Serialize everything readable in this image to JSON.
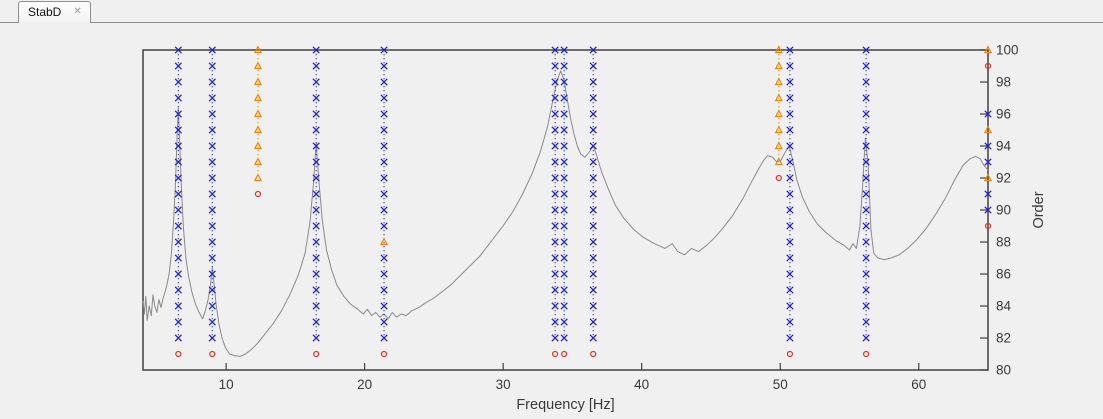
{
  "tab_bar": {
    "tabs": [
      {
        "label": "StabD",
        "close_glyph": "✕",
        "active": true
      }
    ]
  },
  "chart_data": {
    "type": "line",
    "subtype": "stabilization-diagram",
    "xlabel": "Frequency [Hz]",
    "ylabel": "Order",
    "xlim": [
      4,
      65
    ],
    "ylim": [
      80,
      100
    ],
    "x_ticks": [
      10,
      20,
      30,
      40,
      50,
      60
    ],
    "y_ticks": [
      80,
      82,
      84,
      86,
      88,
      90,
      92,
      94,
      96,
      98,
      100
    ],
    "grid": false,
    "legend": "none",
    "colors": {
      "stable_pole": "#2222cc",
      "frequency_pole": "#e8860d",
      "new_pole": "#e0332a",
      "curve": "#8a8a8a",
      "axis": "#404040",
      "tick_text": "#3a3a3a"
    },
    "marker_glyphs": {
      "stable_pole": "x-marker",
      "frequency_pole": "triangle-marker",
      "new_pole": "circle-marker"
    },
    "pole_columns": [
      {
        "f": 6.55,
        "line": "blue",
        "x_orders": [
          100,
          99,
          98,
          97,
          96,
          95,
          94,
          93,
          92,
          91,
          90,
          89,
          88,
          87,
          86,
          85,
          84,
          83,
          82
        ],
        "tri_orders": [],
        "circle_orders": [
          81
        ]
      },
      {
        "f": 9.0,
        "line": "blue",
        "x_orders": [
          100,
          99,
          98,
          97,
          96,
          95,
          94,
          93,
          92,
          91,
          90,
          89,
          88,
          87,
          86,
          85,
          84,
          83,
          82
        ],
        "tri_orders": [],
        "circle_orders": [
          81
        ]
      },
      {
        "f": 12.3,
        "line": "orange",
        "x_orders": [],
        "tri_orders": [
          100,
          99,
          98,
          97,
          96,
          95,
          94,
          93,
          92
        ],
        "circle_orders": [
          91
        ]
      },
      {
        "f": 16.5,
        "line": "blue",
        "x_orders": [
          100,
          99,
          98,
          97,
          96,
          95,
          94,
          93,
          92,
          91,
          90,
          89,
          88,
          87,
          86,
          85,
          84,
          83,
          82
        ],
        "tri_orders": [],
        "circle_orders": [
          81
        ]
      },
      {
        "f": 21.4,
        "line": "blue",
        "x_orders": [
          100,
          99,
          98,
          97,
          96,
          95,
          94,
          93,
          92,
          91,
          90,
          89,
          87,
          86,
          85,
          84,
          83,
          82
        ],
        "tri_orders": [
          88
        ],
        "circle_orders": [
          81
        ]
      },
      {
        "f": 33.75,
        "line": "blue",
        "x_orders": [
          100,
          99,
          98,
          97,
          96,
          95,
          94,
          93,
          92,
          91,
          90,
          89,
          88,
          87,
          86,
          85,
          84,
          83,
          82
        ],
        "tri_orders": [],
        "circle_orders": [
          81
        ]
      },
      {
        "f": 34.4,
        "line": "blue",
        "x_orders": [
          100,
          99,
          98,
          97,
          96,
          95,
          94,
          93,
          92,
          91,
          90,
          89,
          88,
          87,
          86,
          85,
          84,
          83,
          82
        ],
        "tri_orders": [],
        "circle_orders": [
          81
        ]
      },
      {
        "f": 36.5,
        "line": "blue",
        "x_orders": [
          100,
          99,
          98,
          97,
          96,
          95,
          94,
          93,
          92,
          91,
          90,
          89,
          88,
          87,
          86,
          85,
          84,
          83,
          82
        ],
        "tri_orders": [],
        "circle_orders": [
          81
        ]
      },
      {
        "f": 49.9,
        "line": "orange",
        "x_orders": [],
        "tri_orders": [
          100,
          99,
          98,
          97,
          96,
          95,
          94,
          93
        ],
        "circle_orders": [
          92
        ]
      },
      {
        "f": 50.7,
        "line": "blue",
        "x_orders": [
          100,
          99,
          98,
          97,
          96,
          95,
          94,
          93,
          92,
          91,
          90,
          89,
          88,
          87,
          86,
          85,
          84,
          83,
          82
        ],
        "tri_orders": [],
        "circle_orders": [
          81
        ]
      },
      {
        "f": 56.2,
        "line": "blue",
        "x_orders": [
          100,
          99,
          98,
          97,
          96,
          95,
          94,
          93,
          92,
          91,
          90,
          89,
          88,
          87,
          86,
          85,
          84,
          83,
          82
        ],
        "tri_orders": [],
        "circle_orders": [
          81
        ]
      },
      {
        "f": 65.0,
        "line": "none",
        "x_orders": [
          96,
          94,
          93,
          91,
          90
        ],
        "tri_orders": [
          100,
          95,
          92
        ],
        "circle_orders": [
          99,
          89
        ]
      }
    ],
    "frf_curve": {
      "name": "mode-indicator-function",
      "points": [
        [
          4.0,
          84.3
        ],
        [
          4.1,
          83.5
        ],
        [
          4.2,
          84.6
        ],
        [
          4.3,
          83.1
        ],
        [
          4.45,
          84.0
        ],
        [
          4.6,
          83.4
        ],
        [
          4.72,
          84.7
        ],
        [
          4.85,
          84.0
        ],
        [
          5.0,
          83.6
        ],
        [
          5.15,
          84.4
        ],
        [
          5.3,
          83.9
        ],
        [
          5.45,
          84.5
        ],
        [
          5.6,
          84.9
        ],
        [
          5.75,
          85.4
        ],
        [
          5.9,
          86.1
        ],
        [
          6.05,
          87.3
        ],
        [
          6.2,
          89.2
        ],
        [
          6.35,
          91.8
        ],
        [
          6.45,
          94.3
        ],
        [
          6.55,
          96.4
        ],
        [
          6.65,
          94.2
        ],
        [
          6.78,
          91.3
        ],
        [
          6.92,
          88.9
        ],
        [
          7.1,
          87.0
        ],
        [
          7.3,
          85.8
        ],
        [
          7.55,
          84.8
        ],
        [
          7.8,
          84.1
        ],
        [
          8.05,
          83.6
        ],
        [
          8.3,
          83.2
        ],
        [
          8.5,
          83.7
        ],
        [
          8.7,
          84.4
        ],
        [
          8.88,
          85.4
        ],
        [
          9.0,
          86.4
        ],
        [
          9.12,
          85.5
        ],
        [
          9.28,
          84.1
        ],
        [
          9.48,
          82.9
        ],
        [
          9.7,
          82.0
        ],
        [
          9.95,
          81.4
        ],
        [
          10.25,
          81.0
        ],
        [
          10.6,
          80.9
        ],
        [
          11.0,
          80.85
        ],
        [
          11.4,
          81.0
        ],
        [
          11.85,
          81.3
        ],
        [
          12.3,
          81.7
        ],
        [
          12.85,
          82.3
        ],
        [
          13.4,
          82.9
        ],
        [
          14.0,
          83.7
        ],
        [
          14.6,
          84.7
        ],
        [
          15.2,
          85.9
        ],
        [
          15.7,
          87.3
        ],
        [
          16.05,
          89.2
        ],
        [
          16.3,
          91.6
        ],
        [
          16.5,
          94.2
        ],
        [
          16.7,
          91.8
        ],
        [
          16.95,
          89.3
        ],
        [
          17.25,
          87.5
        ],
        [
          17.6,
          86.3
        ],
        [
          18.0,
          85.3
        ],
        [
          18.5,
          84.6
        ],
        [
          19.0,
          84.1
        ],
        [
          19.5,
          83.8
        ],
        [
          19.9,
          83.5
        ],
        [
          20.2,
          83.8
        ],
        [
          20.5,
          83.4
        ],
        [
          20.8,
          83.6
        ],
        [
          21.1,
          83.3
        ],
        [
          21.4,
          83.5
        ],
        [
          21.7,
          83.2
        ],
        [
          22.0,
          83.6
        ],
        [
          22.3,
          83.3
        ],
        [
          22.65,
          83.5
        ],
        [
          23.0,
          83.4
        ],
        [
          23.4,
          83.7
        ],
        [
          23.9,
          83.9
        ],
        [
          24.4,
          84.2
        ],
        [
          25.0,
          84.5
        ],
        [
          25.6,
          84.9
        ],
        [
          26.2,
          85.3
        ],
        [
          26.9,
          85.9
        ],
        [
          27.6,
          86.5
        ],
        [
          28.3,
          87.1
        ],
        [
          29.1,
          88.0
        ],
        [
          29.9,
          88.9
        ],
        [
          30.7,
          89.9
        ],
        [
          31.4,
          91.0
        ],
        [
          32.1,
          92.3
        ],
        [
          32.7,
          93.7
        ],
        [
          33.2,
          95.2
        ],
        [
          33.6,
          96.9
        ],
        [
          33.9,
          98.1
        ],
        [
          34.15,
          98.7
        ],
        [
          34.4,
          98.1
        ],
        [
          34.65,
          96.8
        ],
        [
          34.85,
          95.8
        ],
        [
          35.1,
          94.8
        ],
        [
          35.35,
          94.0
        ],
        [
          35.6,
          93.5
        ],
        [
          35.9,
          93.3
        ],
        [
          36.2,
          93.6
        ],
        [
          36.5,
          94.0
        ],
        [
          36.75,
          93.4
        ],
        [
          37.1,
          92.4
        ],
        [
          37.6,
          91.3
        ],
        [
          38.1,
          90.3
        ],
        [
          38.7,
          89.5
        ],
        [
          39.4,
          88.8
        ],
        [
          40.1,
          88.3
        ],
        [
          40.9,
          87.9
        ],
        [
          41.7,
          87.6
        ],
        [
          42.2,
          87.9
        ],
        [
          42.6,
          87.4
        ],
        [
          43.1,
          87.2
        ],
        [
          43.6,
          87.6
        ],
        [
          44.1,
          87.4
        ],
        [
          44.7,
          87.8
        ],
        [
          45.3,
          88.3
        ],
        [
          45.9,
          88.9
        ],
        [
          46.6,
          89.7
        ],
        [
          47.3,
          90.7
        ],
        [
          47.9,
          91.7
        ],
        [
          48.4,
          92.5
        ],
        [
          48.8,
          93.1
        ],
        [
          49.1,
          93.4
        ],
        [
          49.45,
          93.3
        ],
        [
          49.75,
          93.0
        ],
        [
          50.05,
          93.1
        ],
        [
          50.35,
          93.6
        ],
        [
          50.65,
          94.0
        ],
        [
          50.9,
          93.1
        ],
        [
          51.2,
          91.9
        ],
        [
          51.6,
          90.8
        ],
        [
          52.1,
          89.9
        ],
        [
          52.7,
          89.1
        ],
        [
          53.3,
          88.6
        ],
        [
          54.0,
          88.1
        ],
        [
          54.6,
          87.8
        ],
        [
          55.0,
          87.5
        ],
        [
          55.25,
          87.9
        ],
        [
          55.5,
          87.6
        ],
        [
          55.75,
          89.0
        ],
        [
          55.95,
          91.5
        ],
        [
          56.15,
          94.5
        ],
        [
          56.35,
          92.8
        ],
        [
          56.55,
          88.8
        ],
        [
          56.75,
          87.3
        ],
        [
          57.05,
          87.0
        ],
        [
          57.5,
          86.9
        ],
        [
          58.0,
          87.0
        ],
        [
          58.6,
          87.2
        ],
        [
          59.2,
          87.6
        ],
        [
          59.8,
          88.1
        ],
        [
          60.5,
          88.8
        ],
        [
          61.2,
          89.7
        ],
        [
          61.9,
          90.7
        ],
        [
          62.6,
          91.9
        ],
        [
          63.2,
          92.8
        ],
        [
          63.7,
          93.2
        ],
        [
          64.1,
          93.35
        ],
        [
          64.45,
          93.2
        ],
        [
          64.7,
          92.8
        ],
        [
          65.0,
          92.5
        ]
      ]
    }
  }
}
